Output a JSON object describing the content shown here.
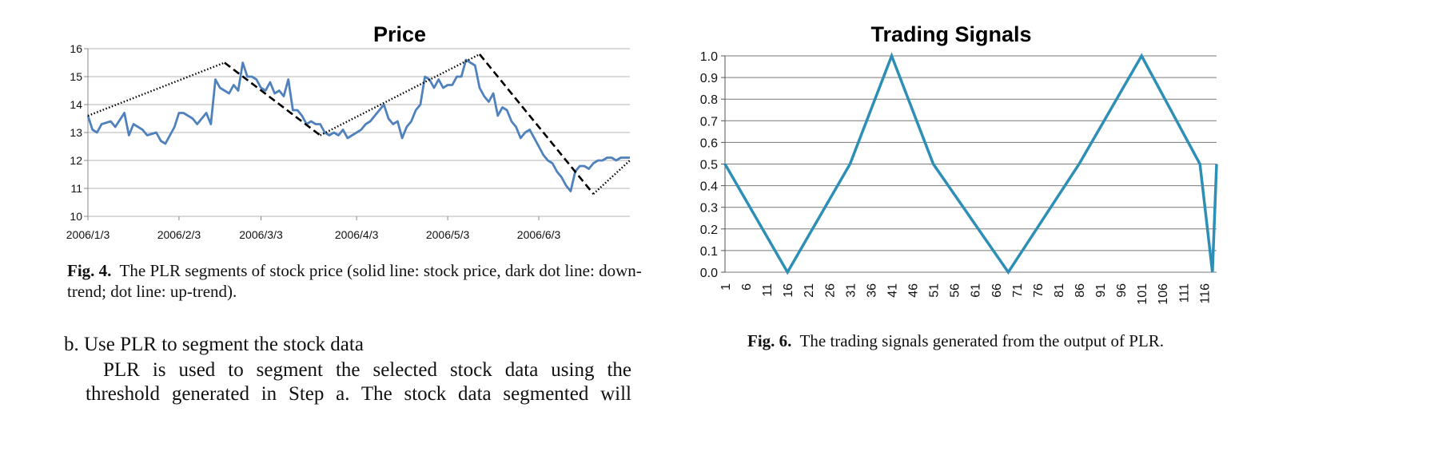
{
  "figure4": {
    "chart_data": {
      "type": "line",
      "title": "Price",
      "xlabel": "",
      "ylabel": "",
      "ylim": [
        10,
        16
      ],
      "yticks": [
        10,
        11,
        12,
        13,
        14,
        15,
        16
      ],
      "xtick_labels": [
        "2006/1/3",
        "2006/2/3",
        "2006/3/3",
        "2006/4/3",
        "2006/5/3",
        "2006/6/3"
      ],
      "n_points": 120,
      "series": [
        {
          "style": "solid",
          "color": "#4f81bd",
          "x": [
            0,
            1,
            2,
            3,
            5,
            6,
            8,
            9,
            10,
            11,
            12,
            13,
            15,
            16,
            17,
            18,
            19,
            20,
            21,
            23,
            24,
            25,
            26,
            27,
            28,
            29,
            30,
            31,
            32,
            33,
            34,
            35,
            36,
            37,
            38,
            39,
            40,
            41,
            42,
            43,
            44,
            45,
            46,
            47,
            48,
            49,
            50,
            51,
            52,
            53,
            54,
            55,
            56,
            57,
            58,
            59,
            60,
            61,
            62,
            63,
            64,
            65,
            66,
            67,
            68,
            69,
            70,
            71,
            72,
            73,
            74,
            75,
            76,
            77,
            78,
            79,
            80,
            81,
            82,
            83,
            84,
            85,
            86,
            87,
            88,
            89,
            90,
            91,
            92,
            93,
            94,
            95,
            96,
            97,
            98,
            99,
            100,
            101,
            102,
            103,
            104,
            105,
            106,
            107,
            108,
            109,
            110,
            111,
            112,
            113,
            114,
            115,
            116,
            117,
            118,
            119
          ],
          "values": [
            13.6,
            13.1,
            13.0,
            13.3,
            13.4,
            13.2,
            13.7,
            12.9,
            13.3,
            13.2,
            13.1,
            12.9,
            13.0,
            12.7,
            12.6,
            12.9,
            13.2,
            13.7,
            13.7,
            13.5,
            13.3,
            13.5,
            13.7,
            13.3,
            14.9,
            14.6,
            14.5,
            14.4,
            14.7,
            14.5,
            15.5,
            15.0,
            15.0,
            14.9,
            14.6,
            14.5,
            14.8,
            14.4,
            14.5,
            14.3,
            14.9,
            13.8,
            13.8,
            13.6,
            13.3,
            13.4,
            13.3,
            13.3,
            13.0,
            12.9,
            13.0,
            12.9,
            13.1,
            12.8,
            12.9,
            13.0,
            13.1,
            13.3,
            13.4,
            13.6,
            13.8,
            14.0,
            13.5,
            13.3,
            13.4,
            12.8,
            13.2,
            13.4,
            13.8,
            14.0,
            15.0,
            14.9,
            14.6,
            14.9,
            14.6,
            14.7,
            14.7,
            15.0,
            15.0,
            15.6,
            15.5,
            15.4,
            14.6,
            14.3,
            14.1,
            14.4,
            13.6,
            13.9,
            13.8,
            13.4,
            13.2,
            12.8,
            13.0,
            13.1,
            12.8,
            12.5,
            12.2,
            12.0,
            11.9,
            11.6,
            11.4,
            11.1,
            10.9,
            11.6,
            11.8,
            11.8,
            11.7,
            11.9,
            12.0,
            12.0,
            12.1,
            12.1,
            12.0,
            12.1,
            12.1,
            12.1
          ]
        },
        {
          "style": "dotted",
          "color": "#000000",
          "x": [
            0,
            30
          ],
          "values": [
            13.6,
            15.5
          ]
        },
        {
          "style": "dashed",
          "color": "#000000",
          "x": [
            30,
            51
          ],
          "values": [
            15.5,
            12.9
          ]
        },
        {
          "style": "dotted",
          "color": "#000000",
          "x": [
            51,
            86
          ],
          "values": [
            12.9,
            15.8
          ]
        },
        {
          "style": "dashed",
          "color": "#000000",
          "x": [
            86,
            111
          ],
          "values": [
            15.8,
            10.8
          ]
        },
        {
          "style": "dotted",
          "color": "#000000",
          "x": [
            111,
            119
          ],
          "values": [
            10.8,
            12.0
          ]
        }
      ]
    },
    "caption_label": "Fig. 4.",
    "caption_line1": "The PLR segments of stock price (solid line: stock price, dark dot line: down-",
    "caption_line2": "trend; dot line: up-trend)."
  },
  "figure6": {
    "chart_data": {
      "type": "line",
      "title": "Trading Signals",
      "xlabel": "",
      "ylabel": "",
      "ylim": [
        0,
        1
      ],
      "yticks": [
        "0.0",
        "0.1",
        "0.2",
        "0.3",
        "0.4",
        "0.5",
        "0.6",
        "0.7",
        "0.8",
        "0.9",
        "1.0"
      ],
      "xtick_labels": [
        "1",
        "6",
        "11",
        "16",
        "21",
        "26",
        "31",
        "36",
        "41",
        "46",
        "51",
        "56",
        "61",
        "66",
        "71",
        "76",
        "81",
        "86",
        "91",
        "96",
        "101",
        "106",
        "111",
        "116"
      ],
      "x": [
        1,
        16,
        31,
        41,
        51,
        69,
        86,
        101,
        116
      ],
      "x_end": 119,
      "series": [
        {
          "color": "#2e8fb6",
          "x": [
            1,
            16,
            31,
            41,
            51,
            69,
            86,
            101,
            115,
            118,
            121
          ],
          "values": [
            0.5,
            0,
            0.5,
            1,
            0.5,
            0,
            0.5,
            1,
            0.5,
            0,
            0.5
          ]
        }
      ]
    },
    "caption_label": "Fig. 6.",
    "caption_text": "The trading signals generated from the output of PLR."
  },
  "text": {
    "section_heading": "b. Use PLR to segment the stock data",
    "paragraph_line1": "PLR is used to segment the selected stock data using the",
    "paragraph_line2": "threshold generated in Step a. The stock data segmented will"
  }
}
